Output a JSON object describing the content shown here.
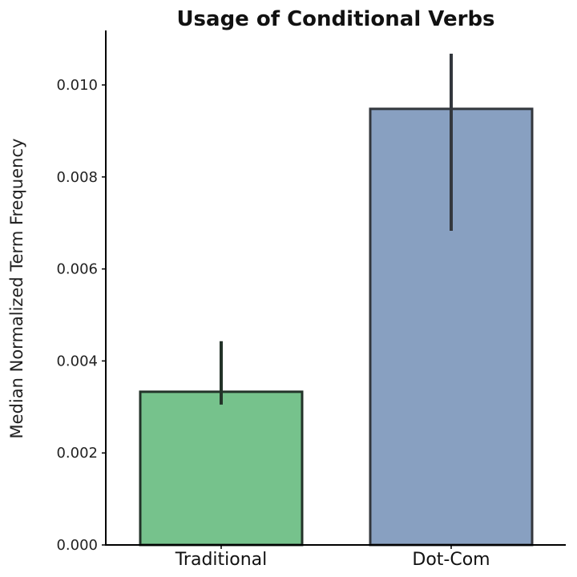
{
  "chart_data": {
    "type": "bar",
    "title": "Usage of Conditional Verbs",
    "xlabel": "",
    "ylabel": "Median Normalized Term Frequency",
    "categories": [
      "Traditional",
      "Dot-Com"
    ],
    "values": [
      0.00333,
      0.00948
    ],
    "error_low": [
      0.00305,
      0.00683
    ],
    "error_high": [
      0.00443,
      0.01068
    ],
    "colors": [
      "#76c28c",
      "#88a0c1"
    ],
    "edge_colors": [
      "#233329",
      "#33373d"
    ],
    "ylim": [
      0,
      0.0112
    ],
    "yticks": [
      "0.000",
      "0.002",
      "0.004",
      "0.006",
      "0.008",
      "0.010"
    ],
    "ytick_values": [
      0,
      0.002,
      0.004,
      0.006,
      0.008,
      0.01
    ],
    "grid": false,
    "legend": null
  }
}
